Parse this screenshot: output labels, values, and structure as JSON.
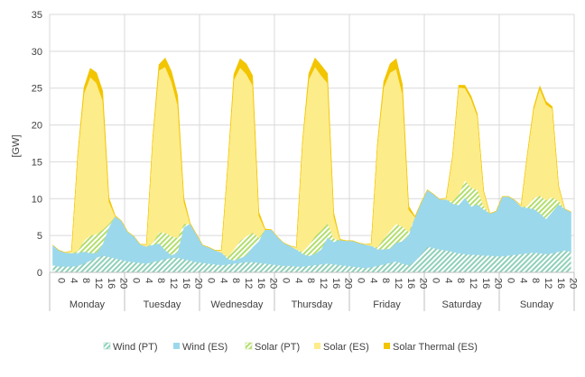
{
  "chart_data": {
    "type": "area",
    "stacked": true,
    "ylabel": "[GW]",
    "ylim": [
      0,
      35
    ],
    "yticks": [
      0,
      5,
      10,
      15,
      20,
      25,
      30,
      35
    ],
    "grid": true,
    "legend_position": "bottom",
    "days": [
      "Monday",
      "Tuesday",
      "Wednesday",
      "Thursday",
      "Friday",
      "Saturday",
      "Sunday"
    ],
    "hour_ticks": [
      "0",
      "4",
      "8",
      "12",
      "16",
      "20"
    ],
    "hours_per_point": 2,
    "series": [
      {
        "name": "Wind (PT)",
        "color": "#8fd0b8",
        "hatched": true,
        "values": [
          1.0,
          0.8,
          0.8,
          0.8,
          0.9,
          1.2,
          1.6,
          2.0,
          2.3,
          2.1,
          1.9,
          1.7,
          1.5,
          1.4,
          1.3,
          1.2,
          1.4,
          1.6,
          1.8,
          2.0,
          2.0,
          1.8,
          1.6,
          1.4,
          1.3,
          1.2,
          1.1,
          1.0,
          1.1,
          1.2,
          1.3,
          1.4,
          1.4,
          1.3,
          1.2,
          1.1,
          1.0,
          0.9,
          0.9,
          0.8,
          0.8,
          0.9,
          1.0,
          1.1,
          1.2,
          1.1,
          1.0,
          0.9,
          0.8,
          0.7,
          0.6,
          0.7,
          0.9,
          1.1,
          1.3,
          1.5,
          1.2,
          1.0,
          1.5,
          2.5,
          3.5,
          3.3,
          3.1,
          3.0,
          2.8,
          2.6,
          2.5,
          2.4,
          2.4,
          2.3,
          2.3,
          2.2,
          2.2,
          2.3,
          2.4,
          2.5,
          2.6,
          2.7,
          2.6,
          2.5,
          2.6,
          2.8,
          3.0,
          2.8
        ]
      },
      {
        "name": "Wind (ES)",
        "color": "#9bd8ec",
        "hatched": false,
        "values": [
          2.7,
          2.2,
          1.9,
          1.8,
          1.7,
          1.6,
          1.0,
          0.6,
          1.5,
          4.0,
          5.7,
          5.3,
          4.0,
          3.5,
          2.5,
          2.3,
          2.3,
          2.3,
          1.2,
          0.3,
          0.7,
          4.3,
          5.0,
          3.8,
          2.4,
          2.2,
          1.9,
          1.7,
          0.7,
          0.4,
          0.6,
          0.9,
          2.0,
          2.9,
          4.6,
          4.7,
          3.8,
          3.1,
          2.7,
          2.3,
          1.7,
          1.3,
          1.5,
          2.0,
          3.5,
          3.0,
          3.4,
          3.4,
          3.5,
          3.3,
          3.2,
          2.9,
          2.2,
          2.0,
          1.9,
          2.5,
          3.0,
          4.0,
          6.0,
          7.0,
          7.7,
          7.3,
          6.8,
          6.9,
          6.5,
          6.5,
          7.6,
          6.5,
          6.8,
          6.2,
          5.7,
          6.1,
          8.1,
          8.0,
          7.4,
          6.4,
          6.1,
          5.9,
          5.4,
          4.7,
          5.6,
          6.4,
          5.6,
          5.4
        ]
      },
      {
        "name": "Solar (PT)",
        "color": "#b2de6e",
        "hatched": true,
        "values": [
          0,
          0,
          0,
          0,
          0.3,
          1.5,
          2.4,
          2.6,
          2.0,
          0.5,
          0,
          0,
          0,
          0,
          0,
          0,
          0.3,
          1.5,
          2.4,
          2.6,
          2.0,
          0.5,
          0,
          0,
          0,
          0,
          0,
          0,
          0.3,
          1.5,
          2.4,
          2.6,
          2.0,
          0.5,
          0,
          0,
          0,
          0,
          0,
          0,
          0.3,
          1.5,
          2.4,
          2.6,
          2.0,
          0.5,
          0,
          0,
          0,
          0,
          0,
          0,
          0.3,
          1.5,
          2.4,
          2.6,
          2.0,
          0.5,
          0,
          0,
          0,
          0,
          0,
          0,
          0.3,
          1.5,
          2.4,
          2.6,
          2.0,
          0.5,
          0,
          0,
          0,
          0,
          0,
          0,
          0.3,
          1.5,
          2.4,
          2.6,
          2.0,
          0.5,
          0,
          0
        ]
      },
      {
        "name": "Solar (ES)",
        "color": "#fdec8a",
        "hatched": false,
        "values": [
          0,
          0,
          0,
          0.3,
          13.0,
          20.0,
          21.5,
          20.5,
          17.5,
          3.0,
          0,
          0,
          0,
          0,
          0,
          0.3,
          14.0,
          22.0,
          22.5,
          21.0,
          18.0,
          3.0,
          0,
          0,
          0,
          0,
          0,
          0.3,
          12.0,
          23.0,
          23.5,
          22.0,
          20.0,
          3.0,
          0,
          0,
          0,
          0,
          0,
          0.3,
          15.0,
          22.5,
          23.0,
          21.0,
          19.0,
          3.0,
          0,
          0,
          0,
          0,
          0,
          0.3,
          14.0,
          20.5,
          21.5,
          21.0,
          18.0,
          3.0,
          0,
          0,
          0,
          0,
          0,
          0.2,
          6.0,
          14.5,
          12.5,
          12.0,
          10.0,
          2.0,
          0,
          0,
          0,
          0,
          0,
          0.2,
          7.0,
          12.0,
          14.5,
          13.0,
          12.0,
          2.0,
          0,
          0
        ]
      },
      {
        "name": "Solar Thermal (ES)",
        "color": "#f2c500",
        "hatched": false,
        "values": [
          0,
          0,
          0,
          0,
          0.2,
          0.8,
          1.2,
          1.4,
          1.3,
          0.5,
          0.1,
          0,
          0,
          0,
          0,
          0,
          0.2,
          0.8,
          1.2,
          1.4,
          1.3,
          0.5,
          0.1,
          0,
          0,
          0,
          0,
          0,
          0.2,
          0.8,
          1.2,
          1.4,
          1.3,
          0.5,
          0.1,
          0,
          0,
          0,
          0,
          0,
          0.2,
          0.8,
          1.2,
          1.4,
          1.3,
          0.5,
          0.1,
          0,
          0,
          0,
          0,
          0,
          0.2,
          0.8,
          1.2,
          1.4,
          1.3,
          0.5,
          0.1,
          0,
          0,
          0,
          0,
          0,
          0.1,
          0.3,
          0.4,
          0.4,
          0.3,
          0.1,
          0,
          0,
          0,
          0,
          0,
          0,
          0.1,
          0.3,
          0.4,
          0.4,
          0.3,
          0.1,
          0,
          0
        ]
      }
    ]
  }
}
